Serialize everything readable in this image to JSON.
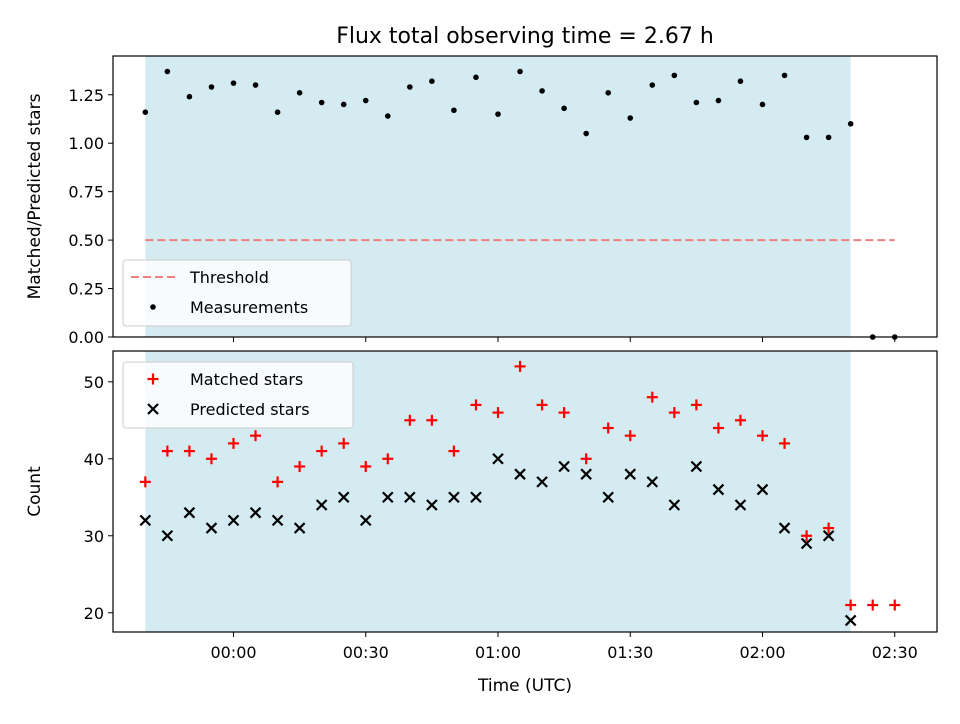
{
  "chart_data": {
    "type": "scatter",
    "title": "Flux total observing time = 2.67 h",
    "xlabel": "Time (UTC)",
    "x_ticks": [
      "00:00",
      "00:30",
      "01:00",
      "01:30",
      "02:00",
      "02:30"
    ],
    "x_tick_times": [
      "00:00",
      "00:30",
      "01:00",
      "01:30",
      "02:00",
      "02:30"
    ],
    "shaded_span": [
      "23:40",
      "02:20"
    ],
    "colors": {
      "shade": "#add8e6",
      "threshold": "#f08080",
      "matched": "#ff0000",
      "predicted": "#000000",
      "measurements": "#000000"
    },
    "time": [
      "23:40",
      "23:45",
      "23:50",
      "23:55",
      "00:00",
      "00:05",
      "00:10",
      "00:15",
      "00:20",
      "00:25",
      "00:30",
      "00:35",
      "00:40",
      "00:45",
      "00:50",
      "00:55",
      "01:00",
      "01:05",
      "01:10",
      "01:15",
      "01:20",
      "01:25",
      "01:30",
      "01:35",
      "01:40",
      "01:45",
      "01:50",
      "01:55",
      "02:00",
      "02:05",
      "02:10",
      "02:15",
      "02:20",
      "02:25",
      "02:30"
    ],
    "top_panel": {
      "ylabel": "Matched/Predicted stars",
      "ylim": [
        0,
        1.45
      ],
      "y_ticks": [
        "0.00",
        "0.25",
        "0.50",
        "0.75",
        "1.00",
        "1.25"
      ],
      "threshold": {
        "name": "Threshold",
        "value": 0.5,
        "x_range": [
          "23:40",
          "02:30"
        ]
      },
      "measurements": {
        "name": "Measurements",
        "values": [
          1.16,
          1.37,
          1.24,
          1.29,
          1.31,
          1.3,
          1.16,
          1.26,
          1.21,
          1.2,
          1.22,
          1.14,
          1.29,
          1.32,
          1.17,
          1.34,
          1.15,
          1.37,
          1.27,
          1.18,
          1.05,
          1.26,
          1.13,
          1.3,
          1.35,
          1.21,
          1.22,
          1.32,
          1.2,
          1.35,
          1.03,
          1.03,
          1.1,
          0.0,
          0.0
        ]
      },
      "legend_position": "lower-left"
    },
    "bottom_panel": {
      "ylabel": "Count",
      "ylim": [
        17.5,
        54
      ],
      "y_ticks": [
        "20",
        "30",
        "40",
        "50"
      ],
      "series": [
        {
          "name": "Matched stars",
          "values": [
            37,
            41,
            41,
            40,
            42,
            43,
            37,
            39,
            41,
            42,
            39,
            40,
            45,
            45,
            41,
            47,
            46,
            52,
            47,
            46,
            40,
            44,
            43,
            48,
            46,
            47,
            44,
            45,
            43,
            42,
            30,
            31,
            21,
            21,
            21
          ]
        },
        {
          "name": "Predicted stars",
          "values": [
            32,
            30,
            33,
            31,
            32,
            33,
            32,
            31,
            34,
            35,
            32,
            35,
            35,
            34,
            35,
            35,
            40,
            38,
            37,
            39,
            38,
            35,
            38,
            37,
            34,
            39,
            36,
            34,
            36,
            31,
            29,
            30,
            19,
            null,
            null
          ]
        }
      ],
      "legend_position": "upper-left"
    }
  }
}
